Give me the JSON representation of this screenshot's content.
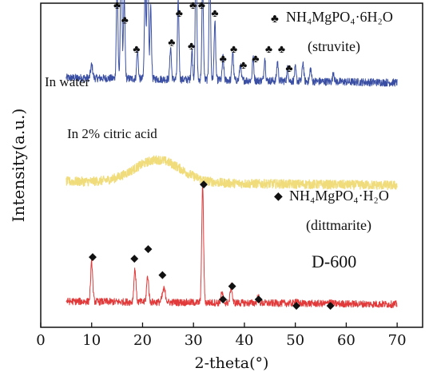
{
  "chart_data": {
    "type": "line",
    "xlabel": "2-theta(°)",
    "ylabel": "Intensity(a.u.)",
    "xlim": [
      0,
      75
    ],
    "xticks": [
      0,
      10,
      20,
      30,
      40,
      50,
      60,
      70
    ],
    "yticks": "none",
    "grid": false,
    "colors": {
      "water": "#3a4fa3",
      "citric": "#f0dc7a",
      "d600": "#e23a3a",
      "marker": "#111111"
    },
    "series": [
      {
        "key": "water",
        "label": "In water",
        "offset": 0.72,
        "noise": 0.012,
        "x_range": [
          5,
          70
        ],
        "baseline": 0.05,
        "peaks": [
          {
            "x": 10.0,
            "h": 0.04,
            "w": 0.2
          },
          {
            "x": 15.0,
            "h": 0.3,
            "w": 0.15
          },
          {
            "x": 15.8,
            "h": 0.42,
            "w": 0.15
          },
          {
            "x": 16.4,
            "h": 0.25,
            "w": 0.15
          },
          {
            "x": 19.0,
            "h": 0.09,
            "w": 0.15
          },
          {
            "x": 20.5,
            "h": 0.28,
            "w": 0.15
          },
          {
            "x": 21.0,
            "h": 0.42,
            "w": 0.15
          },
          {
            "x": 21.6,
            "h": 0.22,
            "w": 0.15
          },
          {
            "x": 25.5,
            "h": 0.1,
            "w": 0.15
          },
          {
            "x": 27.0,
            "h": 0.24,
            "w": 0.15
          },
          {
            "x": 29.7,
            "h": 0.09,
            "w": 0.15
          },
          {
            "x": 30.5,
            "h": 0.38,
            "w": 0.15
          },
          {
            "x": 31.8,
            "h": 0.3,
            "w": 0.15
          },
          {
            "x": 33.2,
            "h": 0.36,
            "w": 0.15
          },
          {
            "x": 34.2,
            "h": 0.18,
            "w": 0.15
          },
          {
            "x": 35.8,
            "h": 0.07,
            "w": 0.15
          },
          {
            "x": 37.7,
            "h": 0.09,
            "w": 0.15
          },
          {
            "x": 39.2,
            "h": 0.05,
            "w": 0.15
          },
          {
            "x": 41.7,
            "h": 0.07,
            "w": 0.15
          },
          {
            "x": 44.0,
            "h": 0.07,
            "w": 0.15
          },
          {
            "x": 46.5,
            "h": 0.06,
            "w": 0.15
          },
          {
            "x": 48.5,
            "h": 0.04,
            "w": 0.15
          },
          {
            "x": 50.0,
            "h": 0.04,
            "w": 0.15
          },
          {
            "x": 51.5,
            "h": 0.06,
            "w": 0.15
          },
          {
            "x": 53.0,
            "h": 0.04,
            "w": 0.15
          },
          {
            "x": 57.5,
            "h": 0.03,
            "w": 0.15
          }
        ]
      },
      {
        "key": "citric",
        "label": "In 2% citric acid",
        "offset": 0.41,
        "noise": 0.014,
        "x_range": [
          5,
          70
        ],
        "baseline": 0.04,
        "peaks": [
          {
            "x": 23.0,
            "h": 0.07,
            "w": 4.5
          }
        ]
      },
      {
        "key": "d600",
        "label": "D-600",
        "offset": 0.05,
        "noise": 0.011,
        "x_range": [
          5,
          70
        ],
        "baseline": 0.03,
        "peaks": [
          {
            "x": 10.0,
            "h": 0.12,
            "w": 0.2
          },
          {
            "x": 18.5,
            "h": 0.1,
            "w": 0.2
          },
          {
            "x": 21.0,
            "h": 0.08,
            "w": 0.2
          },
          {
            "x": 24.2,
            "h": 0.04,
            "w": 0.3
          },
          {
            "x": 31.8,
            "h": 0.36,
            "w": 0.18
          },
          {
            "x": 35.6,
            "h": 0.03,
            "w": 0.2
          },
          {
            "x": 37.4,
            "h": 0.05,
            "w": 0.2
          },
          {
            "x": 42.7,
            "h": 0.02,
            "w": 0.2
          },
          {
            "x": 50.1,
            "h": 0.01,
            "w": 0.2
          },
          {
            "x": 56.8,
            "h": 0.01,
            "w": 0.2
          }
        ]
      }
    ],
    "markers": {
      "struvite": {
        "symbol": "♣",
        "legend_formula": "NH₄MgPO₄·6H₂O",
        "legend_name": "(struvite)",
        "points": [
          {
            "x": 15.0,
            "y": 0.995
          },
          {
            "x": 16.5,
            "y": 1.06
          },
          {
            "x": 16.5,
            "y": 0.95
          },
          {
            "x": 18.8,
            "y": 0.86
          },
          {
            "x": 19.9,
            "y": 1.03
          },
          {
            "x": 21.8,
            "y": 1.05
          },
          {
            "x": 25.7,
            "y": 0.88
          },
          {
            "x": 27.2,
            "y": 0.97
          },
          {
            "x": 29.6,
            "y": 0.87
          },
          {
            "x": 29.9,
            "y": 0.995
          },
          {
            "x": 31.6,
            "y": 0.995
          },
          {
            "x": 33.0,
            "y": 1.04
          },
          {
            "x": 34.2,
            "y": 0.97
          },
          {
            "x": 35.8,
            "y": 0.83
          },
          {
            "x": 37.9,
            "y": 0.86
          },
          {
            "x": 39.8,
            "y": 0.81
          },
          {
            "x": 42.2,
            "y": 0.83
          },
          {
            "x": 44.8,
            "y": 0.86
          },
          {
            "x": 47.3,
            "y": 0.86
          },
          {
            "x": 48.8,
            "y": 0.8
          }
        ]
      },
      "dittmarite": {
        "symbol": "◆",
        "legend_formula": "NH₄MgPO₄·H₂O",
        "legend_name": "(dittmarite)",
        "points": [
          {
            "x": 10.2,
            "y": 0.22
          },
          {
            "x": 18.4,
            "y": 0.215
          },
          {
            "x": 21.1,
            "y": 0.245
          },
          {
            "x": 23.9,
            "y": 0.165
          },
          {
            "x": 32.0,
            "y": 0.445
          },
          {
            "x": 35.8,
            "y": 0.09
          },
          {
            "x": 37.6,
            "y": 0.13
          },
          {
            "x": 42.8,
            "y": 0.09
          },
          {
            "x": 50.2,
            "y": 0.07
          },
          {
            "x": 56.9,
            "y": 0.07
          }
        ]
      }
    }
  }
}
